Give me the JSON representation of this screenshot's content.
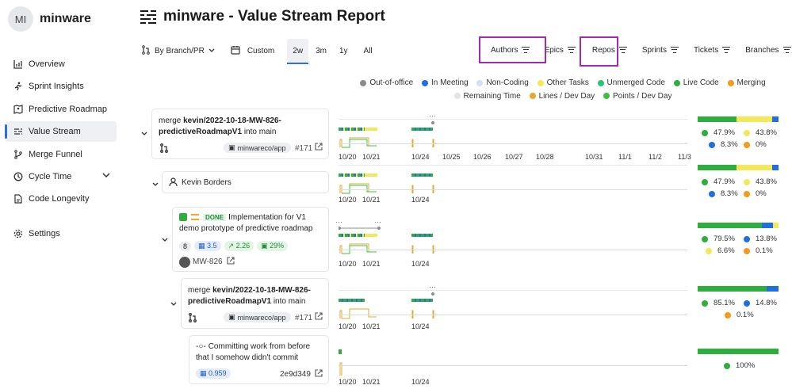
{
  "colors": {
    "out_of_office": "#8c8c8c",
    "in_meeting": "#1f6fe0",
    "non_coding": "#cfe0fb",
    "other_tasks": "#f2e85a",
    "unmerged_code": "#2bc37a",
    "live_code": "#2eae3c",
    "merging": "#f59a1b",
    "remaining_time": "#e2e4e6",
    "lines_dev_day": "#e6a82a",
    "points_dev_day": "#3fbf3f",
    "accent": "#2f6fd8",
    "highlight": "#a02bb0"
  },
  "brand": {
    "initials": "MI",
    "name": "minware"
  },
  "sidebar": {
    "items": [
      {
        "label": "Overview",
        "icon": "chart-icon"
      },
      {
        "label": "Sprint Insights",
        "icon": "runner-icon"
      },
      {
        "label": "Predictive Roadmap",
        "icon": "map-icon"
      },
      {
        "label": "Value Stream",
        "icon": "stream-icon",
        "active": true
      },
      {
        "label": "Merge Funnel",
        "icon": "merge-icon"
      },
      {
        "label": "Cycle Time",
        "icon": "clock-icon"
      },
      {
        "label": "Code Longevity",
        "icon": "document-icon"
      }
    ],
    "settings_label": "Settings"
  },
  "header": {
    "title": "minware - Value Stream Report"
  },
  "toolbar": {
    "group_by": "By Branch/PR",
    "custom": "Custom",
    "ranges": [
      "2w",
      "3m",
      "1y",
      "All"
    ],
    "selected_range": "2w"
  },
  "filters": [
    "Authors",
    "Epics",
    "Repos",
    "Sprints",
    "Tickets",
    "Branches"
  ],
  "legend": [
    {
      "label": "Out-of-office",
      "color": "#8c8c8c"
    },
    {
      "label": "In Meeting",
      "color": "#1f6fe0"
    },
    {
      "label": "Non-Coding",
      "color": "#cfe0fb"
    },
    {
      "label": "Other Tasks",
      "color": "#f2e85a"
    },
    {
      "label": "Unmerged Code",
      "color": "#2bc37a"
    },
    {
      "label": "Live Code",
      "color": "#2eae3c"
    },
    {
      "label": "Merging",
      "color": "#f59a1b"
    },
    {
      "label": "Remaining Time",
      "color": "#e2e4e6"
    },
    {
      "label": "Lines / Dev Day",
      "color": "#e6a82a"
    },
    {
      "label": "Points / Dev Day",
      "color": "#3fbf3f"
    }
  ],
  "dates": [
    "10/20",
    "10/21",
    "10/24",
    "10/25",
    "10/26",
    "10/27",
    "10/28",
    "10/31",
    "11/1",
    "11/2",
    "11/3"
  ],
  "rows": [
    {
      "type": "pr",
      "title_prefix": "merge ",
      "title_bold": "kevin/2022-10-18-MW-826-predictiveRoadmapV1",
      "title_suffix": " into main",
      "repo": "minwareco/app",
      "pr_number": "#171",
      "stats": [
        "47.9%",
        "43.8%",
        "8.3%",
        "0%"
      ],
      "composition": {
        "live_code": 47.9,
        "other_tasks": 43.8,
        "in_meeting": 8.3,
        "merging": 0
      }
    },
    {
      "type": "author",
      "name": "Kevin Borders",
      "stats": [
        "47.9%",
        "43.8%",
        "8.3%",
        "0%"
      ],
      "composition": {
        "live_code": 47.9,
        "other_tasks": 43.8,
        "in_meeting": 8.3,
        "merging": 0
      }
    },
    {
      "type": "ticket",
      "status": "DONE",
      "title": "Implementation for V1 demo prototype of predictive roadmap",
      "count": "8",
      "points": "3.5",
      "trend": "2.26",
      "pct": "29%",
      "ticket_id": "MW-826",
      "stats": [
        "79.5%",
        "13.8%",
        "6.6%",
        "0.1%"
      ],
      "composition": {
        "live_code": 79.5,
        "in_meeting": 13.8,
        "other_tasks": 6.6,
        "merging": 0.1
      }
    },
    {
      "type": "pr",
      "title_prefix": "merge ",
      "title_bold": "kevin/2022-10-18-MW-826-predictiveRoadmapV1",
      "title_suffix": " into main",
      "repo": "minwareco/app",
      "pr_number": "#171",
      "stats": [
        "85.1%",
        "14.8%",
        "0.1%"
      ],
      "composition": {
        "live_code": 85.1,
        "in_meeting": 14.8,
        "merging": 0.1
      }
    },
    {
      "type": "commit",
      "title": "Committing work from before that I somehow didn't commit",
      "value": "0.959",
      "sha": "2e9d349",
      "stats": [
        "100%"
      ],
      "composition": {
        "live_code": 100
      }
    }
  ]
}
